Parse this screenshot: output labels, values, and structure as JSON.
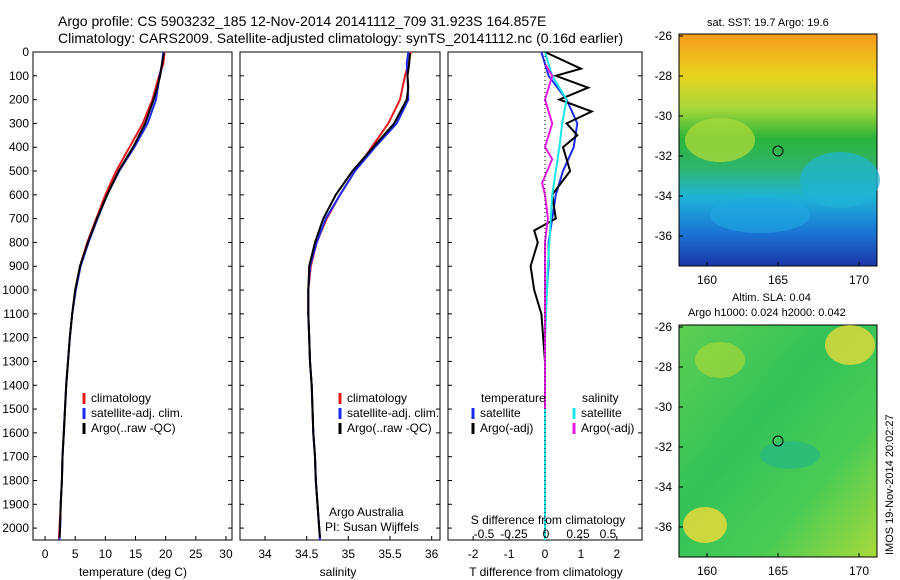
{
  "header": {
    "line1": "Argo profile: CS 5903232_185 12-Nov-2014 20141112_709 31.923S 164.857E",
    "line2": "Climatology: CARS2009. Satellite-adjusted climatology: synTS_20141112.nc (0.16d earlier)"
  },
  "colors": {
    "climatology": "#e8191b",
    "satellite": "#1b2cf0",
    "argo": "#000000",
    "satellite_s": "#19e6e6",
    "argo_s": "#e619e6"
  },
  "depth_axis": {
    "ticks": [
      0,
      100,
      200,
      300,
      400,
      500,
      600,
      700,
      800,
      900,
      1000,
      1100,
      1200,
      1300,
      1400,
      1500,
      1600,
      1700,
      1800,
      1900,
      2000
    ]
  },
  "temperature_panel": {
    "xlabel": "temperature (deg C)",
    "xticks": [
      "0",
      "5",
      "10",
      "15",
      "20",
      "25",
      "30"
    ],
    "legend": [
      "climatology",
      "satellite-adj. clim.",
      "Argo(..raw -QC)"
    ]
  },
  "salinity_panel": {
    "xlabel": "salinity",
    "xticks": [
      "34",
      "34.5",
      "35",
      "35.5",
      "36"
    ],
    "legend": [
      "climatology",
      "satellite-adj. clim.",
      "Argo(..raw -QC)"
    ],
    "credit1": "Argo Australia",
    "credit2": "PI: Susan Wijffels"
  },
  "difference_panel": {
    "xlabel": "T difference from climatology",
    "s_label": "S difference from climatology",
    "t_ticks": [
      "-2",
      "-1",
      "0",
      "1",
      "2"
    ],
    "s_ticks": [
      "-0.5",
      "-0.25",
      "0",
      "0.25",
      "0.5"
    ],
    "legend_temperature": "temperature",
    "legend_salinity": "salinity",
    "legend_t": [
      "satellite",
      "Argo(-adj)"
    ],
    "legend_s": [
      "satellite",
      "Argo(-adj)"
    ]
  },
  "sst_map": {
    "title": "sat. SST: 19.7 Argo: 19.6",
    "yticks": [
      "-26",
      "-28",
      "-30",
      "-32",
      "-34",
      "-36"
    ],
    "xticks": [
      "160",
      "165",
      "170"
    ]
  },
  "sla_map": {
    "title1": "Altim. SLA: 0.04",
    "title2": "Argo h1000: 0.024 h2000: 0.042",
    "yticks": [
      "-26",
      "-28",
      "-30",
      "-32",
      "-34",
      "-36"
    ],
    "xticks": [
      "160",
      "165",
      "170"
    ]
  },
  "timestamp": "IMOS 19-Nov-2014 20:02:27",
  "chart_data": [
    {
      "type": "line",
      "name": "temperature",
      "xlabel": "temperature (deg C)",
      "ylabel": "",
      "xlim": [
        -2,
        31
      ],
      "ylim": [
        2050,
        0
      ],
      "series": [
        {
          "name": "climatology",
          "points": [
            [
              19.8,
              0
            ],
            [
              19.6,
              50
            ],
            [
              18.9,
              100
            ],
            [
              17.8,
              200
            ],
            [
              16.2,
              300
            ],
            [
              14.0,
              400
            ],
            [
              11.8,
              500
            ],
            [
              10.0,
              600
            ],
            [
              8.5,
              700
            ],
            [
              7.0,
              800
            ],
            [
              5.8,
              900
            ],
            [
              5.0,
              1000
            ],
            [
              4.5,
              1100
            ],
            [
              4.1,
              1200
            ],
            [
              3.8,
              1300
            ],
            [
              3.5,
              1400
            ],
            [
              3.3,
              1500
            ],
            [
              3.1,
              1600
            ],
            [
              2.9,
              1700
            ],
            [
              2.8,
              1800
            ],
            [
              2.6,
              1900
            ],
            [
              2.4,
              2000
            ],
            [
              2.3,
              2050
            ]
          ]
        },
        {
          "name": "satellite-adj. clim.",
          "points": [
            [
              19.6,
              0
            ],
            [
              19.4,
              50
            ],
            [
              19.0,
              100
            ],
            [
              18.4,
              200
            ],
            [
              17.0,
              300
            ],
            [
              14.8,
              400
            ],
            [
              12.3,
              500
            ],
            [
              10.3,
              600
            ],
            [
              8.7,
              700
            ],
            [
              7.2,
              800
            ],
            [
              5.9,
              900
            ],
            [
              5.1,
              1000
            ],
            [
              4.5,
              1100
            ],
            [
              4.1,
              1200
            ],
            [
              3.8,
              1300
            ],
            [
              3.5,
              1400
            ],
            [
              3.3,
              1500
            ],
            [
              3.1,
              1600
            ],
            [
              2.9,
              1700
            ],
            [
              2.8,
              1800
            ],
            [
              2.6,
              1900
            ],
            [
              2.5,
              2000
            ],
            [
              2.4,
              2050
            ]
          ]
        },
        {
          "name": "Argo(..raw -QC)",
          "points": [
            [
              19.7,
              5
            ],
            [
              19.4,
              50
            ],
            [
              19.1,
              100
            ],
            [
              18.6,
              150
            ],
            [
              18.0,
              200
            ],
            [
              16.6,
              300
            ],
            [
              14.6,
              400
            ],
            [
              12.2,
              500
            ],
            [
              10.3,
              600
            ],
            [
              8.6,
              700
            ],
            [
              7.1,
              800
            ],
            [
              5.8,
              900
            ],
            [
              5.0,
              1000
            ],
            [
              4.5,
              1100
            ],
            [
              4.1,
              1200
            ],
            [
              3.8,
              1300
            ],
            [
              3.5,
              1400
            ],
            [
              3.3,
              1500
            ],
            [
              3.1,
              1600
            ],
            [
              2.9,
              1700
            ],
            [
              2.8,
              1800
            ],
            [
              2.6,
              1900
            ],
            [
              2.5,
              2000
            ],
            [
              2.4,
              2040
            ]
          ]
        }
      ]
    },
    {
      "type": "line",
      "name": "salinity",
      "xlabel": "salinity",
      "ylabel": "",
      "xlim": [
        33.7,
        36.1
      ],
      "ylim": [
        2050,
        0
      ],
      "series": [
        {
          "name": "climatology",
          "points": [
            [
              35.75,
              0
            ],
            [
              35.72,
              50
            ],
            [
              35.68,
              100
            ],
            [
              35.62,
              200
            ],
            [
              35.48,
              300
            ],
            [
              35.28,
              400
            ],
            [
              35.08,
              500
            ],
            [
              34.9,
              600
            ],
            [
              34.74,
              700
            ],
            [
              34.62,
              800
            ],
            [
              34.55,
              900
            ],
            [
              34.52,
              1000
            ],
            [
              34.52,
              1100
            ],
            [
              34.53,
              1200
            ],
            [
              34.54,
              1300
            ],
            [
              34.56,
              1400
            ],
            [
              34.57,
              1500
            ],
            [
              34.58,
              1600
            ],
            [
              34.6,
              1700
            ],
            [
              34.61,
              1800
            ],
            [
              34.63,
              1900
            ],
            [
              34.65,
              2000
            ],
            [
              34.66,
              2050
            ]
          ]
        },
        {
          "name": "satellite-adj. clim.",
          "points": [
            [
              35.72,
              0
            ],
            [
              35.7,
              50
            ],
            [
              35.71,
              100
            ],
            [
              35.72,
              200
            ],
            [
              35.58,
              300
            ],
            [
              35.32,
              400
            ],
            [
              35.08,
              500
            ],
            [
              34.9,
              600
            ],
            [
              34.73,
              700
            ],
            [
              34.62,
              800
            ],
            [
              34.54,
              900
            ],
            [
              34.52,
              1000
            ],
            [
              34.52,
              1100
            ],
            [
              34.53,
              1200
            ],
            [
              34.54,
              1300
            ],
            [
              34.56,
              1400
            ],
            [
              34.57,
              1500
            ],
            [
              34.58,
              1600
            ],
            [
              34.6,
              1700
            ],
            [
              34.61,
              1800
            ],
            [
              34.63,
              1900
            ],
            [
              34.65,
              2000
            ],
            [
              34.66,
              2050
            ]
          ]
        },
        {
          "name": "Argo(..raw -QC)",
          "points": [
            [
              35.74,
              5
            ],
            [
              35.73,
              50
            ],
            [
              35.71,
              100
            ],
            [
              35.72,
              150
            ],
            [
              35.7,
              200
            ],
            [
              35.55,
              300
            ],
            [
              35.3,
              400
            ],
            [
              35.05,
              500
            ],
            [
              34.85,
              600
            ],
            [
              34.7,
              700
            ],
            [
              34.6,
              800
            ],
            [
              34.53,
              900
            ],
            [
              34.52,
              1000
            ],
            [
              34.52,
              1100
            ],
            [
              34.53,
              1200
            ],
            [
              34.54,
              1300
            ],
            [
              34.56,
              1400
            ],
            [
              34.57,
              1500
            ],
            [
              34.58,
              1600
            ],
            [
              34.6,
              1700
            ],
            [
              34.61,
              1800
            ],
            [
              34.63,
              1900
            ],
            [
              34.65,
              2000
            ],
            [
              34.66,
              2040
            ]
          ]
        }
      ]
    },
    {
      "type": "line",
      "name": "difference from climatology",
      "xlabel": "T difference from climatology",
      "x2label": "S difference from climatology",
      "xlim": [
        -2.7,
        2.7
      ],
      "ylim": [
        2050,
        0
      ],
      "series": [
        {
          "name": "temperature satellite",
          "points": [
            [
              -0.1,
              0
            ],
            [
              0.1,
              100
            ],
            [
              0.6,
              200
            ],
            [
              0.9,
              300
            ],
            [
              0.8,
              400
            ],
            [
              0.5,
              500
            ],
            [
              0.3,
              600
            ],
            [
              0.2,
              700
            ],
            [
              0.1,
              800
            ],
            [
              0.1,
              900
            ],
            [
              0.05,
              1000
            ],
            [
              0.0,
              1200
            ],
            [
              0.0,
              1500
            ],
            [
              0.0,
              1800
            ],
            [
              0.0,
              2050
            ]
          ]
        },
        {
          "name": "temperature Argo(-adj)",
          "points": [
            [
              0.0,
              0
            ],
            [
              1.0,
              70
            ],
            [
              0.3,
              100
            ],
            [
              1.2,
              150
            ],
            [
              0.4,
              200
            ],
            [
              1.3,
              250
            ],
            [
              0.6,
              300
            ],
            [
              0.9,
              350
            ],
            [
              0.5,
              400
            ],
            [
              0.7,
              500
            ],
            [
              0.2,
              600
            ],
            [
              0.3,
              700
            ],
            [
              -0.3,
              750
            ],
            [
              -0.2,
              800
            ],
            [
              -0.4,
              900
            ],
            [
              -0.3,
              1000
            ],
            [
              -0.1,
              1100
            ],
            [
              0.0,
              1300
            ],
            [
              0.0,
              1600
            ],
            [
              0.0,
              2050
            ]
          ]
        },
        {
          "name": "salinity satellite",
          "points": [
            [
              0.0,
              0
            ],
            [
              0.05,
              100
            ],
            [
              0.15,
              200
            ],
            [
              0.12,
              300
            ],
            [
              0.1,
              400
            ],
            [
              0.05,
              600
            ],
            [
              0.02,
              900
            ],
            [
              0.0,
              1200
            ],
            [
              0.0,
              1600
            ],
            [
              0.0,
              2050
            ]
          ]
        },
        {
          "name": "salinity Argo(-adj)",
          "points": [
            [
              0.0,
              50
            ],
            [
              0.05,
              100
            ],
            [
              0.0,
              200
            ],
            [
              0.05,
              300
            ],
            [
              0.0,
              400
            ],
            [
              0.05,
              450
            ],
            [
              -0.02,
              550
            ],
            [
              0.0,
              600
            ],
            [
              0.02,
              700
            ],
            [
              0.0,
              800
            ],
            [
              0.0,
              1000
            ],
            [
              0.0,
              1500
            ]
          ]
        }
      ]
    }
  ]
}
